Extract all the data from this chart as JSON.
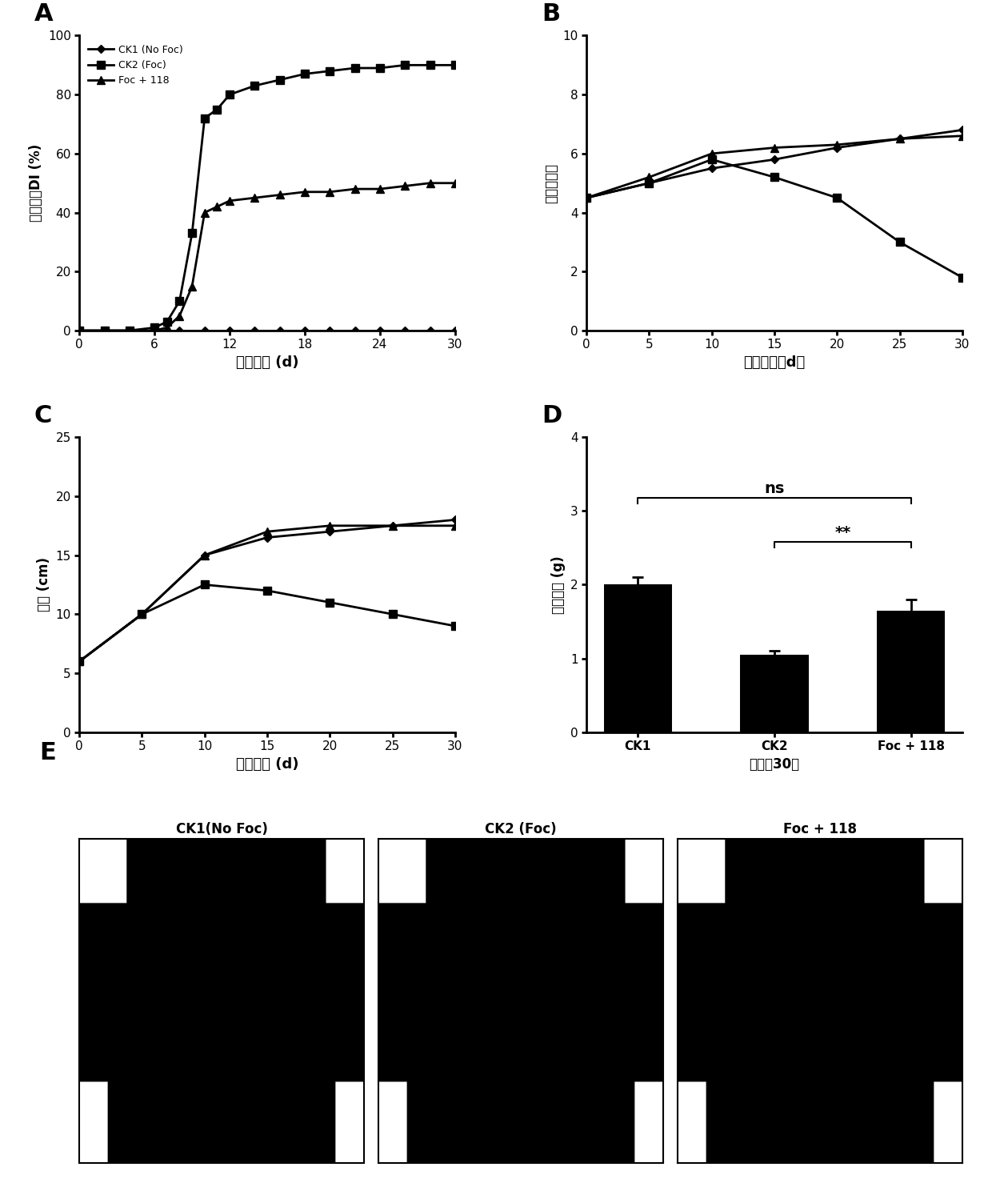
{
  "panel_A": {
    "title": "A",
    "xlabel": "移格天数 (d)",
    "ylabel": "病情指数DI (%)",
    "xlim": [
      0,
      30
    ],
    "ylim": [
      0,
      100
    ],
    "xticks": [
      0,
      6,
      12,
      18,
      24,
      30
    ],
    "yticks": [
      0,
      20,
      40,
      60,
      80,
      100
    ],
    "series": [
      {
        "label": "CK1 (No Foc)",
        "x": [
          0,
          2,
          4,
          6,
          8,
          10,
          12,
          14,
          16,
          18,
          20,
          22,
          24,
          26,
          28,
          30
        ],
        "y": [
          0,
          0,
          0,
          0,
          0,
          0,
          0,
          0,
          0,
          0,
          0,
          0,
          0,
          0,
          0,
          0
        ],
        "marker": "D",
        "markersize": 5,
        "linewidth": 2,
        "color": "#000000"
      },
      {
        "label": "CK2 (Foc)",
        "x": [
          0,
          2,
          4,
          6,
          7,
          8,
          9,
          10,
          11,
          12,
          14,
          16,
          18,
          20,
          22,
          24,
          26,
          28,
          30
        ],
        "y": [
          0,
          0,
          0,
          1,
          3,
          10,
          33,
          72,
          75,
          80,
          83,
          85,
          87,
          88,
          89,
          89,
          90,
          90,
          90
        ],
        "marker": "s",
        "markersize": 7,
        "linewidth": 2,
        "color": "#000000"
      },
      {
        "label": "Foc + 118",
        "x": [
          0,
          2,
          4,
          6,
          7,
          8,
          9,
          10,
          11,
          12,
          14,
          16,
          18,
          20,
          22,
          24,
          26,
          28,
          30
        ],
        "y": [
          0,
          0,
          0,
          0,
          1,
          5,
          15,
          40,
          42,
          44,
          45,
          46,
          47,
          47,
          48,
          48,
          49,
          50,
          50
        ],
        "marker": "^",
        "markersize": 7,
        "linewidth": 2,
        "color": "#000000"
      }
    ]
  },
  "panel_B": {
    "title": "B",
    "xlabel": "移格天数（d）",
    "ylabel": "香蕉叶片数",
    "xlim": [
      0,
      30
    ],
    "ylim": [
      0,
      10
    ],
    "xticks": [
      0,
      5,
      10,
      15,
      20,
      25,
      30
    ],
    "yticks": [
      0,
      2,
      4,
      6,
      8,
      10
    ],
    "series": [
      {
        "label": "CK1 (No Foc)",
        "x": [
          0,
          5,
          10,
          15,
          20,
          25,
          30
        ],
        "y": [
          4.5,
          5.0,
          5.5,
          5.8,
          6.2,
          6.5,
          6.8
        ],
        "marker": "D",
        "markersize": 5,
        "linewidth": 2,
        "color": "#000000"
      },
      {
        "label": "CK2 (Foc)",
        "x": [
          0,
          5,
          10,
          15,
          20,
          25,
          30
        ],
        "y": [
          4.5,
          5.0,
          5.8,
          5.2,
          4.5,
          3.0,
          1.8
        ],
        "marker": "s",
        "markersize": 7,
        "linewidth": 2,
        "color": "#000000"
      },
      {
        "label": "Foc + 118",
        "x": [
          0,
          5,
          10,
          15,
          20,
          25,
          30
        ],
        "y": [
          4.5,
          5.2,
          6.0,
          6.2,
          6.3,
          6.5,
          6.6
        ],
        "marker": "^",
        "markersize": 7,
        "linewidth": 2,
        "color": "#000000"
      }
    ]
  },
  "panel_C": {
    "title": "C",
    "xlabel": "移格天数 (d)",
    "ylabel": "莎高 (cm)",
    "xlim": [
      0,
      30
    ],
    "ylim": [
      0,
      25
    ],
    "xticks": [
      0,
      5,
      10,
      15,
      20,
      25,
      30
    ],
    "yticks": [
      0,
      5,
      10,
      15,
      20,
      25
    ],
    "series": [
      {
        "label": "CK1 (No Foc)",
        "x": [
          0,
          5,
          10,
          15,
          20,
          25,
          30
        ],
        "y": [
          6.0,
          10.0,
          15.0,
          16.5,
          17.0,
          17.5,
          18.0
        ],
        "marker": "D",
        "markersize": 5,
        "linewidth": 2,
        "color": "#000000"
      },
      {
        "label": "CK2 (Foc)",
        "x": [
          0,
          5,
          10,
          15,
          20,
          25,
          30
        ],
        "y": [
          6.0,
          10.0,
          12.5,
          12.0,
          11.0,
          10.0,
          9.0
        ],
        "marker": "s",
        "markersize": 7,
        "linewidth": 2,
        "color": "#000000"
      },
      {
        "label": "Foc + 118",
        "x": [
          0,
          5,
          10,
          15,
          20,
          25,
          30
        ],
        "y": [
          6.0,
          10.0,
          15.0,
          17.0,
          17.5,
          17.5,
          17.5
        ],
        "marker": "^",
        "markersize": 7,
        "linewidth": 2,
        "color": "#000000"
      }
    ]
  },
  "panel_D": {
    "title": "D",
    "xlabel": "移格后30天",
    "ylabel": "植株干重 (g)",
    "ylim": [
      0,
      4
    ],
    "yticks": [
      0,
      1,
      2,
      3,
      4
    ],
    "categories": [
      "CK1",
      "CK2",
      "Foc + 118"
    ],
    "values": [
      2.0,
      1.05,
      1.65
    ],
    "errors": [
      0.1,
      0.05,
      0.15
    ],
    "bar_color": "#000000",
    "ns_text": "ns",
    "star_text": "**",
    "ns_x1": 0,
    "ns_x2": 2,
    "star_x1": 1,
    "star_x2": 2
  },
  "panel_E": {
    "title": "E",
    "labels": [
      "CK1(No Foc)",
      "CK2 (Foc)",
      "Foc + 118"
    ]
  },
  "background_color": "#ffffff",
  "text_color": "#000000"
}
